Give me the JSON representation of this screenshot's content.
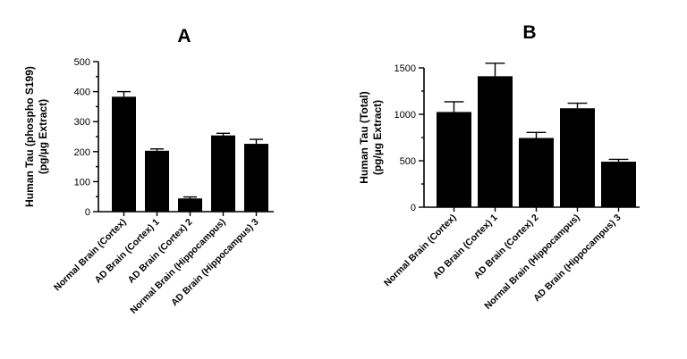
{
  "chart_data": [
    {
      "type": "bar",
      "title": "A",
      "ylabel": [
        "Human Tau (phospho S199)",
        "(pg/µg Extract)"
      ],
      "xlabel": "",
      "ylim": [
        0,
        500
      ],
      "yticks": [
        0,
        100,
        200,
        300,
        400,
        500
      ],
      "categories": [
        "Normal Brain (Cortex)",
        "AD Brain (Cortex) 1",
        "AD Brain (Cortex) 2",
        "Normal Brain (Hippocampus)",
        "AD Brain (Hippocampus) 3"
      ],
      "values": [
        383,
        203,
        44,
        254,
        226
      ],
      "errors": [
        17,
        6,
        5,
        7,
        15
      ],
      "bar_color": "#000000",
      "grid": false,
      "legend": "none"
    },
    {
      "type": "bar",
      "title": "B",
      "ylabel": [
        "Human Tau (Total)",
        "(pg/µg Extract)"
      ],
      "xlabel": "",
      "ylim": [
        0,
        1500
      ],
      "yticks": [
        0,
        500,
        1000,
        1500
      ],
      "categories": [
        "Normal Brain (Cortex)",
        "AD Brain (Cortex) 1",
        "AD Brain (Cortex) 2",
        "Normal Brain (Hippocampus)",
        "AD Brain (Hippocampus) 3"
      ],
      "values": [
        1025,
        1410,
        745,
        1065,
        490
      ],
      "errors": [
        110,
        140,
        60,
        55,
        25
      ],
      "bar_color": "#000000",
      "grid": false,
      "legend": "none"
    }
  ]
}
